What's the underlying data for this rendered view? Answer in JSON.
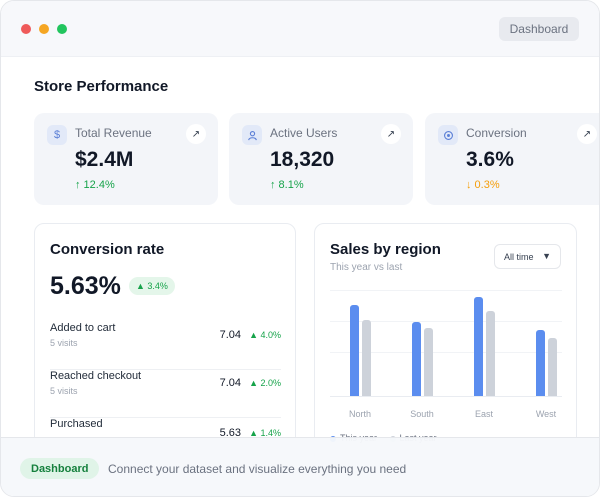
{
  "window": {
    "pill_label": "Dashboard"
  },
  "section_title": "Store Performance",
  "stats": [
    {
      "icon": "dollar-icon",
      "label": "Total Revenue",
      "value": "$2.4M",
      "change": "↑ 12.4%",
      "direction": "up"
    },
    {
      "icon": "user-icon",
      "label": "Active Users",
      "value": "18,320",
      "change": "↑ 8.1%",
      "direction": "up"
    },
    {
      "icon": "target-icon",
      "label": "Conversion",
      "value": "3.6%",
      "change": "↓ 0.3%",
      "direction": "down"
    }
  ],
  "conversion": {
    "title": "Conversion rate",
    "value": "5.63%",
    "badge": "▲ 3.4%",
    "rows": [
      {
        "name": "Added to cart",
        "sub": "5 visits",
        "value": "7.04",
        "delta": "▲ 4.0%"
      },
      {
        "name": "Reached checkout",
        "sub": "5 visits",
        "value": "7.04",
        "delta": "▲ 2.0%"
      },
      {
        "name": "Purchased",
        "sub": "",
        "value": "5.63",
        "delta": "▲ 1.4%"
      }
    ]
  },
  "sales": {
    "title": "Sales by region",
    "subtitle": "This year vs last",
    "filter": "All time",
    "legend": [
      "This year",
      "Last year"
    ]
  },
  "chart_data": {
    "type": "bar",
    "title": "Sales by region",
    "subtitle": "This year vs last",
    "categories": [
      "North",
      "South",
      "East",
      "West"
    ],
    "series": [
      {
        "name": "This year",
        "values": [
          89,
          73,
          97,
          65
        ]
      },
      {
        "name": "Last year",
        "values": [
          75,
          67,
          83,
          57
        ]
      }
    ],
    "ylim": [
      0,
      110
    ],
    "grid": true,
    "legend_position": "bottom-left",
    "colors": [
      "#5b8def",
      "#cdd2da"
    ]
  },
  "footer": {
    "badge": "Dashboard",
    "text": "Connect your dataset and visualize everything you need"
  },
  "colors": {
    "accent": "#5b8def",
    "positive": "#16a34a",
    "negative": "#f59e0b"
  }
}
